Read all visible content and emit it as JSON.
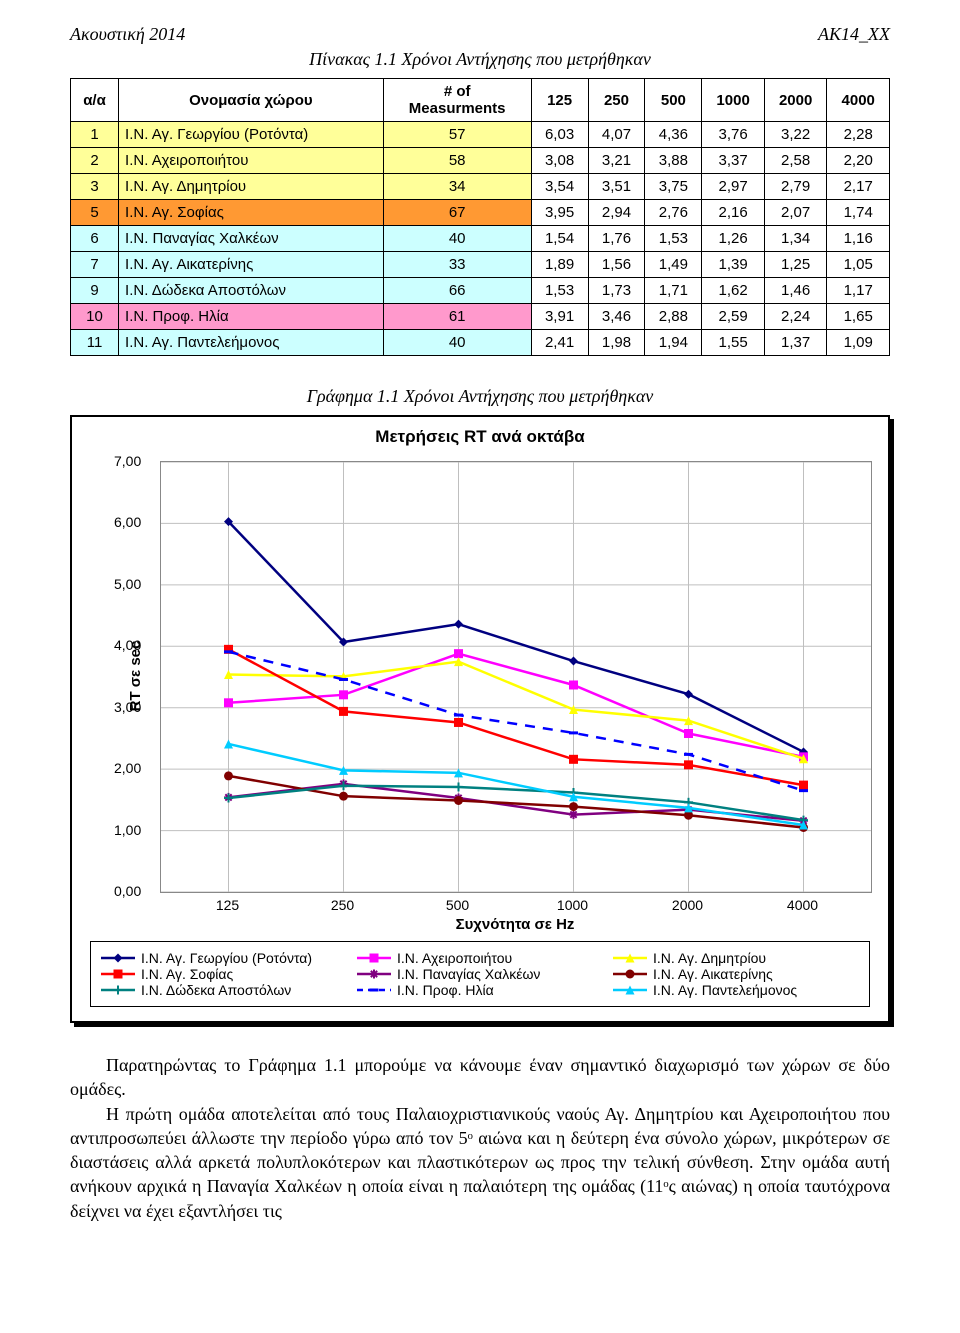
{
  "header": {
    "left": "Ακουστική 2014",
    "right": "ΑΚ14_XX"
  },
  "table": {
    "title": "Πίνακας 1.1 Χρόνοι Αντήχησης που μετρήθηκαν",
    "headers": {
      "idx": "α/α",
      "name": "Ονομασία χώρου",
      "meas": "# of\nMeasurments",
      "f125": "125",
      "f250": "250",
      "f500": "500",
      "f1000": "1000",
      "f2000": "2000",
      "f4000": "4000"
    },
    "rows": [
      {
        "idx": "1",
        "name": "Ι.Ν. Αγ. Γεωργίου (Ροτόντα)",
        "meas": "57",
        "v": [
          "6,03",
          "4,07",
          "4,36",
          "3,76",
          "3,22",
          "2,28"
        ],
        "color": "#ffff99"
      },
      {
        "idx": "2",
        "name": "Ι.Ν. Αχειροποιήτου",
        "meas": "58",
        "v": [
          "3,08",
          "3,21",
          "3,88",
          "3,37",
          "2,58",
          "2,20"
        ],
        "color": "#ffff99"
      },
      {
        "idx": "3",
        "name": "Ι.Ν. Αγ. Δημητρίου",
        "meas": "34",
        "v": [
          "3,54",
          "3,51",
          "3,75",
          "2,97",
          "2,79",
          "2,17"
        ],
        "color": "#ffff99"
      },
      {
        "idx": "5",
        "name": "Ι.Ν. Αγ. Σοφίας",
        "meas": "67",
        "v": [
          "3,95",
          "2,94",
          "2,76",
          "2,16",
          "2,07",
          "1,74"
        ],
        "color": "#ff9933"
      },
      {
        "idx": "6",
        "name": "Ι.Ν. Παναγίας Χαλκέων",
        "meas": "40",
        "v": [
          "1,54",
          "1,76",
          "1,53",
          "1,26",
          "1,34",
          "1,16"
        ],
        "color": "#ccffff"
      },
      {
        "idx": "7",
        "name": "Ι.Ν. Αγ. Αικατερίνης",
        "meas": "33",
        "v": [
          "1,89",
          "1,56",
          "1,49",
          "1,39",
          "1,25",
          "1,05"
        ],
        "color": "#ccffff"
      },
      {
        "idx": "9",
        "name": "Ι.Ν. Δώδεκα Αποστόλων",
        "meas": "66",
        "v": [
          "1,53",
          "1,73",
          "1,71",
          "1,62",
          "1,46",
          "1,17"
        ],
        "color": "#ccffff"
      },
      {
        "idx": "10",
        "name": "Ι.Ν. Προφ. Ηλία",
        "meas": "61",
        "v": [
          "3,91",
          "3,46",
          "2,88",
          "2,59",
          "2,24",
          "1,65"
        ],
        "color": "#ff99cc"
      },
      {
        "idx": "11",
        "name": "Ι.Ν. Αγ. Παντελεήμονος",
        "meas": "40",
        "v": [
          "2,41",
          "1,98",
          "1,94",
          "1,55",
          "1,37",
          "1,09"
        ],
        "color": "#ccffff"
      }
    ],
    "row_colors": {
      "group_yellow": "#ffff99",
      "group_orange": "#ff9933",
      "group_cyan": "#ccffff",
      "group_pink": "#ff99cc"
    }
  },
  "chart": {
    "caption": "Γράφημα  1.1 Χρόνοι Αντήχησης που μετρήθηκαν",
    "inner_title": "Μετρήσεις RT ανά οκτάβα",
    "ylabel": "RT σε sec",
    "xlabel": "Συχνότητα σε Hz",
    "type": "line",
    "x_categories": [
      "125",
      "250",
      "500",
      "1000",
      "2000",
      "4000"
    ],
    "ylim": [
      0,
      7
    ],
    "ytick_step": 1,
    "ytick_labels": [
      "0,00",
      "1,00",
      "2,00",
      "3,00",
      "4,00",
      "5,00",
      "6,00",
      "7,00"
    ],
    "background_color": "#ffffff",
    "grid_color": "#bfbfbf",
    "line_width": 2.5,
    "marker_size": 9,
    "series": [
      {
        "label": "Ι.Ν. Αγ. Γεωργίου (Ροτόντα)",
        "color": "#000080",
        "marker": "diamond",
        "style": "solid",
        "data": [
          6.03,
          4.07,
          4.36,
          3.76,
          3.22,
          2.28
        ]
      },
      {
        "label": "Ι.Ν. Αχειροποιήτου",
        "color": "#ff00ff",
        "marker": "square",
        "style": "solid",
        "data": [
          3.08,
          3.21,
          3.88,
          3.37,
          2.58,
          2.2
        ]
      },
      {
        "label": "Ι.Ν. Αγ. Δημητρίου",
        "color": "#ffff00",
        "marker": "triangle",
        "style": "solid",
        "data": [
          3.54,
          3.51,
          3.75,
          2.97,
          2.79,
          2.17
        ]
      },
      {
        "label": "Ι.Ν. Αγ. Σοφίας",
        "color": "#ff0000",
        "marker": "square",
        "style": "solid",
        "data": [
          3.95,
          2.94,
          2.76,
          2.16,
          2.07,
          1.74
        ]
      },
      {
        "label": "Ι.Ν. Παναγίας Χαλκέων",
        "color": "#800080",
        "marker": "star",
        "style": "solid",
        "data": [
          1.54,
          1.76,
          1.53,
          1.26,
          1.34,
          1.16
        ]
      },
      {
        "label": "Ι.Ν. Αγ. Αικατερίνης",
        "color": "#800000",
        "marker": "circle",
        "style": "solid",
        "data": [
          1.89,
          1.56,
          1.49,
          1.39,
          1.25,
          1.05
        ]
      },
      {
        "label": "Ι.Ν. Δώδεκα Αποστόλων",
        "color": "#008080",
        "marker": "plus",
        "style": "solid",
        "data": [
          1.53,
          1.73,
          1.71,
          1.62,
          1.46,
          1.17
        ]
      },
      {
        "label": "Ι.Ν. Προφ. Ηλία",
        "color": "#0000ff",
        "marker": "dash",
        "style": "dash",
        "data": [
          3.91,
          3.46,
          2.88,
          2.59,
          2.24,
          1.65
        ]
      },
      {
        "label": "Ι.Ν. Αγ. Παντελεήμονος",
        "color": "#00ccff",
        "marker": "triangle",
        "style": "solid",
        "data": [
          2.41,
          1.98,
          1.94,
          1.55,
          1.37,
          1.09
        ]
      }
    ],
    "legend": {
      "rows": [
        [
          0,
          1,
          2
        ],
        [
          3,
          4,
          5
        ],
        [
          6,
          7,
          8
        ]
      ]
    }
  },
  "body": {
    "p1": "Παρατηρώντας το Γράφημα 1.1 μπορούμε να κάνουμε έναν σημαντικό διαχωρισμό των χώρων σε δύο ομάδες.",
    "p2": "Η πρώτη ομάδα αποτελείται από τους Παλαιοχριστιανικούς ναούς Αγ. Δημητρίου και Αχειροποιήτου που αντιπροσωπεύει άλλωστε την περίοδο γύρω από τον 5ᵒ αιώνα και η δεύτερη ένα σύνολο χώρων, μικρότερων σε διαστάσεις αλλά αρκετά πολυπλοκότερων και πλαστικότερων ως προς την τελική σύνθεση. Στην ομάδα αυτή ανήκουν αρχικά η Παναγία Χαλκέων η οποία είναι η παλαιότερη της ομάδας (11ᵒς αιώνας) η οποία ταυτόχρονα δείχνει να έχει εξαντλήσει τις"
  }
}
